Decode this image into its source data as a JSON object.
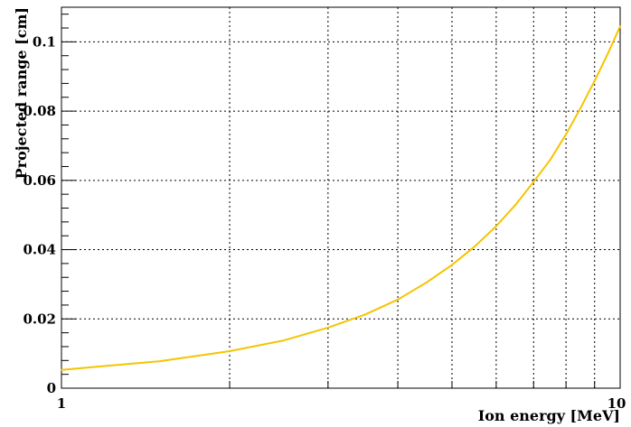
{
  "chart_data": {
    "type": "line",
    "title": "",
    "xlabel": "Ion energy [MeV]",
    "ylabel": "Projected range [cm]",
    "xscale": "log",
    "xlim": [
      1,
      10
    ],
    "ylim": [
      0,
      0.11
    ],
    "grid": true,
    "x_tick_labels": [
      "1",
      "10"
    ],
    "y_tick_labels": [
      "0",
      "0.02",
      "0.04",
      "0.06",
      "0.08",
      "0.1"
    ],
    "line_color": "#f5c400",
    "series": [
      {
        "x": [
          1,
          1.5,
          2,
          2.5,
          3,
          3.5,
          4,
          4.5,
          5,
          5.5,
          6,
          6.5,
          7,
          7.5,
          8,
          8.5,
          9,
          9.5,
          10
        ],
        "y": [
          0.0053,
          0.0078,
          0.0107,
          0.0138,
          0.0175,
          0.0213,
          0.0256,
          0.0305,
          0.0356,
          0.041,
          0.0468,
          0.053,
          0.0596,
          0.066,
          0.0733,
          0.081,
          0.0887,
          0.0965,
          0.1045
        ]
      }
    ]
  }
}
